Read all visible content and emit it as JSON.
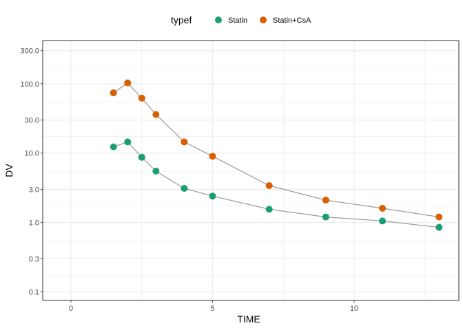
{
  "chart_data": {
    "type": "scatter",
    "xlabel": "TIME",
    "ylabel": "DV",
    "xlim": [
      -1.0,
      13.7
    ],
    "ylim": [
      0.075,
      420
    ],
    "y_scale": "log10",
    "x_ticks": [
      0,
      5,
      10
    ],
    "x_tick_labels": [
      "0",
      "5",
      "10"
    ],
    "y_ticks": [
      0.1,
      0.3,
      1,
      3,
      10,
      30,
      100,
      300
    ],
    "y_tick_labels": [
      "0.1",
      "0.3",
      "1.0",
      "3.0",
      "10.0",
      "30.0",
      "100.0",
      "300.0"
    ],
    "grid": true,
    "legend": {
      "title": "typef",
      "position": "top",
      "items": [
        "Statin",
        "Statin+CsA"
      ]
    },
    "series": [
      {
        "name": "Statin",
        "color": "#1b9e77",
        "x": [
          1.5,
          2,
          2.5,
          3,
          4,
          5,
          7,
          9,
          11,
          13
        ],
        "y": [
          12.3,
          14.5,
          8.7,
          5.5,
          3.1,
          2.4,
          1.55,
          1.2,
          1.05,
          0.85
        ]
      },
      {
        "name": "Statin+CsA",
        "color": "#d95f02",
        "x": [
          1.5,
          2,
          2.5,
          3,
          4,
          5,
          7,
          9,
          11,
          13
        ],
        "y": [
          74,
          103,
          62,
          36,
          14.5,
          9.0,
          3.4,
          2.1,
          1.6,
          1.2
        ]
      }
    ],
    "line_color": "#999999"
  }
}
